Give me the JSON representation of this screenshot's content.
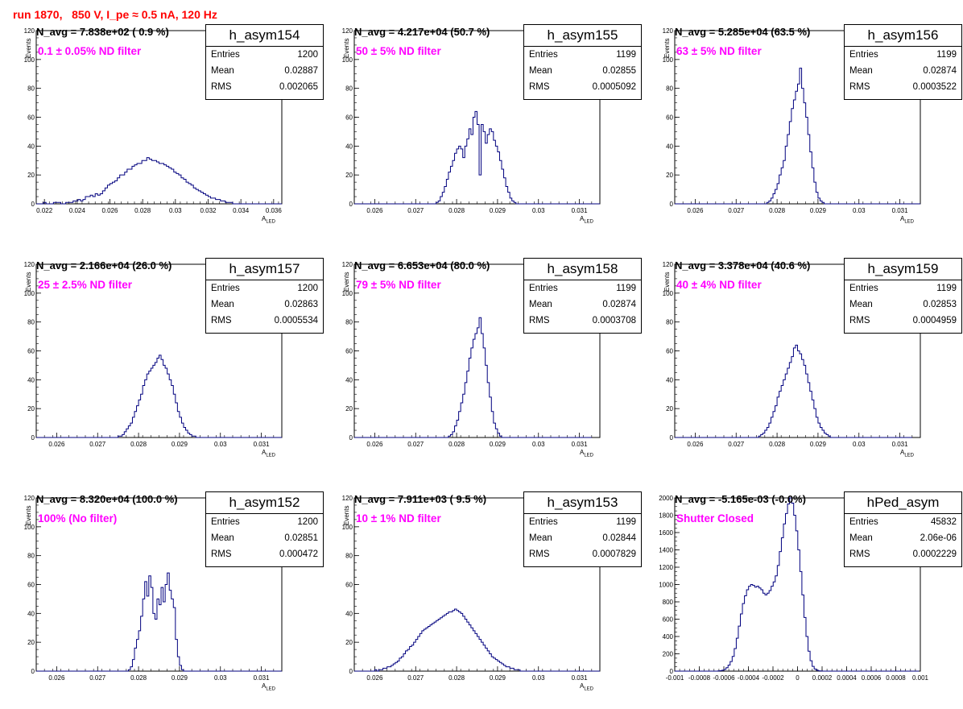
{
  "header": {
    "title": "run 1870,   850 V, I_pe ≈ 0.5 nA, 120 Hz"
  },
  "colors": {
    "line": "#00007f",
    "title": "#ff0000",
    "filter": "#ff00ff",
    "grid": "#cccccc"
  },
  "axis_labels": {
    "y": "Events",
    "x_main": "A",
    "x_sub": "LED"
  },
  "stats_labels": {
    "entries": "Entries",
    "mean": "Mean",
    "rms": "RMS"
  },
  "chart_data": [
    {
      "type": "bar",
      "histogram": true,
      "name": "h_asym154",
      "navg": "N_avg = 7.838e+02 ( 0.9 %)",
      "filter": "0.1 ± 0.05% ND filter",
      "entries": "1200",
      "mean": "0.02887",
      "rms": "0.002065",
      "xlim": [
        0.0215,
        0.0365
      ],
      "ylim": [
        0,
        120
      ],
      "xticks": [
        "0.022",
        "0.024",
        "0.026",
        "0.028",
        "0.03",
        "0.032",
        "0.034",
        "0.036"
      ],
      "yticks": [
        "0",
        "20",
        "40",
        "60",
        "80",
        "100",
        "120"
      ],
      "xlabel": "A LED",
      "ylabel": "Events",
      "bin_start": 0.0215,
      "bin_width": 0.00015,
      "values": [
        0,
        0,
        0,
        1,
        0,
        0,
        0,
        1,
        1,
        1,
        0,
        0,
        1,
        1,
        1,
        2,
        2,
        3,
        2,
        3,
        5,
        5,
        6,
        5,
        7,
        6,
        7,
        9,
        11,
        13,
        14,
        15,
        16,
        18,
        20,
        20,
        22,
        24,
        24,
        26,
        27,
        28,
        28,
        30,
        30,
        32,
        31,
        30,
        30,
        29,
        28,
        28,
        27,
        26,
        25,
        24,
        22,
        21,
        20,
        18,
        17,
        15,
        14,
        13,
        11,
        10,
        9,
        8,
        7,
        6,
        5,
        4,
        4,
        3,
        3,
        2,
        2,
        1,
        1,
        1,
        0,
        0,
        0,
        0,
        0,
        0,
        0,
        0,
        0,
        0,
        0,
        0,
        0,
        0,
        0,
        0,
        0,
        0,
        0,
        0
      ]
    },
    {
      "type": "bar",
      "histogram": true,
      "name": "h_asym155",
      "navg": "N_avg = 4.217e+04 (50.7 %)",
      "filter": "50 ± 5% ND filter",
      "entries": "1199",
      "mean": "0.02855",
      "rms": "0.0005092",
      "xlim": [
        0.0255,
        0.0315
      ],
      "ylim": [
        0,
        120
      ],
      "xticks": [
        "0.026",
        "0.027",
        "0.028",
        "0.029",
        "0.03",
        "0.031"
      ],
      "yticks": [
        "0",
        "20",
        "40",
        "60",
        "80",
        "100",
        "120"
      ],
      "xlabel": "A LED",
      "ylabel": "Events",
      "bin_start": 0.0255,
      "bin_width": 5e-05,
      "values": [
        0,
        0,
        0,
        0,
        0,
        0,
        0,
        0,
        0,
        0,
        0,
        0,
        0,
        0,
        0,
        0,
        0,
        0,
        0,
        0,
        0,
        0,
        0,
        0,
        0,
        0,
        0,
        0,
        0,
        0,
        0,
        0,
        0,
        0,
        0,
        0,
        0,
        0,
        0,
        0,
        1,
        2,
        5,
        8,
        12,
        17,
        22,
        26,
        30,
        35,
        38,
        40,
        38,
        32,
        40,
        45,
        52,
        48,
        60,
        64,
        55,
        20,
        55,
        50,
        42,
        48,
        52,
        50,
        44,
        40,
        36,
        30,
        24,
        18,
        12,
        8,
        4,
        2,
        1,
        0,
        0,
        0,
        0,
        0,
        0,
        0,
        0,
        0,
        0,
        0,
        0,
        0,
        0,
        0,
        0,
        0,
        0,
        0,
        0,
        0,
        0,
        0,
        0,
        0,
        0,
        0,
        0,
        0,
        0,
        0,
        0,
        0,
        0,
        0,
        0,
        0,
        0,
        0,
        0,
        0
      ]
    },
    {
      "type": "bar",
      "histogram": true,
      "name": "h_asym156",
      "navg": "N_avg = 5.285e+04 (63.5 %)",
      "filter": "63 ± 5% ND filter",
      "entries": "1199",
      "mean": "0.02874",
      "rms": "0.0003522",
      "xlim": [
        0.0255,
        0.0315
      ],
      "ylim": [
        0,
        120
      ],
      "xticks": [
        "0.026",
        "0.027",
        "0.028",
        "0.029",
        "0.03",
        "0.031"
      ],
      "yticks": [
        "0",
        "20",
        "40",
        "60",
        "80",
        "100",
        "120"
      ],
      "xlabel": "A LED",
      "ylabel": "Events",
      "bin_start": 0.0255,
      "bin_width": 5e-05,
      "values": [
        0,
        0,
        0,
        0,
        0,
        0,
        0,
        0,
        0,
        0,
        0,
        0,
        0,
        0,
        0,
        0,
        0,
        0,
        0,
        0,
        0,
        0,
        0,
        0,
        0,
        0,
        0,
        0,
        0,
        0,
        0,
        0,
        0,
        0,
        0,
        0,
        0,
        0,
        0,
        0,
        0,
        0,
        0,
        0,
        0,
        1,
        2,
        4,
        7,
        10,
        14,
        20,
        25,
        30,
        40,
        48,
        57,
        66,
        72,
        78,
        83,
        94,
        80,
        70,
        60,
        48,
        36,
        25,
        15,
        8,
        4,
        2,
        1,
        0,
        0,
        0,
        0,
        0,
        0,
        0,
        0,
        0,
        0,
        0,
        0,
        0,
        0,
        0,
        0,
        0,
        0,
        0,
        0,
        0,
        0,
        0,
        0,
        0,
        0,
        0,
        0,
        0,
        0,
        0,
        0,
        0,
        0,
        0,
        0,
        0,
        0,
        0,
        0,
        0,
        0,
        0,
        0,
        0,
        0,
        0
      ]
    },
    {
      "type": "bar",
      "histogram": true,
      "name": "h_asym157",
      "navg": "N_avg = 2.166e+04 (26.0 %)",
      "filter": "25 ± 2.5% ND filter",
      "entries": "1200",
      "mean": "0.02863",
      "rms": "0.0005534",
      "xlim": [
        0.0255,
        0.0315
      ],
      "ylim": [
        0,
        120
      ],
      "xticks": [
        "0.026",
        "0.027",
        "0.028",
        "0.029",
        "0.03",
        "0.031"
      ],
      "yticks": [
        "0",
        "20",
        "40",
        "60",
        "80",
        "100",
        "120"
      ],
      "xlabel": "A LED",
      "ylabel": "Events",
      "bin_start": 0.0255,
      "bin_width": 5e-05,
      "values": [
        0,
        0,
        0,
        0,
        0,
        0,
        0,
        0,
        0,
        0,
        0,
        0,
        0,
        0,
        0,
        0,
        0,
        0,
        0,
        0,
        0,
        0,
        0,
        0,
        0,
        0,
        0,
        0,
        0,
        0,
        0,
        0,
        0,
        0,
        0,
        0,
        0,
        0,
        0,
        0,
        1,
        1,
        2,
        4,
        6,
        8,
        10,
        14,
        18,
        22,
        26,
        30,
        36,
        40,
        44,
        46,
        48,
        50,
        52,
        55,
        57,
        54,
        50,
        48,
        44,
        40,
        36,
        30,
        24,
        18,
        14,
        10,
        7,
        5,
        3,
        2,
        1,
        1,
        0,
        0,
        0,
        0,
        0,
        0,
        0,
        0,
        0,
        0,
        0,
        0,
        0,
        0,
        0,
        0,
        0,
        0,
        0,
        0,
        0,
        0,
        0,
        0,
        0,
        0,
        0,
        0,
        0,
        0,
        0,
        0,
        0,
        0,
        0,
        0,
        0,
        0,
        0,
        0,
        0,
        0
      ]
    },
    {
      "type": "bar",
      "histogram": true,
      "name": "h_asym158",
      "navg": "N_avg = 6.653e+04 (80.0 %)",
      "filter": "79 ± 5% ND filter",
      "entries": "1199",
      "mean": "0.02874",
      "rms": "0.0003708",
      "xlim": [
        0.0255,
        0.0315
      ],
      "ylim": [
        0,
        120
      ],
      "xticks": [
        "0.026",
        "0.027",
        "0.028",
        "0.029",
        "0.03",
        "0.031"
      ],
      "yticks": [
        "0",
        "20",
        "40",
        "60",
        "80",
        "100",
        "120"
      ],
      "xlabel": "A LED",
      "ylabel": "Events",
      "bin_start": 0.0255,
      "bin_width": 5e-05,
      "values": [
        0,
        0,
        0,
        0,
        0,
        0,
        0,
        0,
        0,
        0,
        0,
        0,
        0,
        0,
        0,
        0,
        0,
        0,
        0,
        0,
        0,
        0,
        0,
        0,
        0,
        0,
        0,
        0,
        0,
        0,
        0,
        0,
        0,
        0,
        0,
        0,
        0,
        0,
        0,
        0,
        0,
        0,
        0,
        0,
        0,
        0,
        1,
        2,
        4,
        8,
        12,
        18,
        24,
        30,
        38,
        46,
        55,
        62,
        68,
        72,
        76,
        83,
        72,
        62,
        50,
        38,
        28,
        18,
        10,
        6,
        3,
        1,
        0,
        0,
        0,
        0,
        0,
        0,
        0,
        0,
        0,
        0,
        0,
        0,
        0,
        0,
        0,
        0,
        0,
        0,
        0,
        0,
        0,
        0,
        0,
        0,
        0,
        0,
        0,
        0,
        0,
        0,
        0,
        0,
        0,
        0,
        0,
        0,
        0,
        0,
        0,
        0,
        0,
        0,
        0,
        0
      ]
    },
    {
      "type": "bar",
      "histogram": true,
      "name": "h_asym159",
      "navg": "N_avg = 3.378e+04 (40.6 %)",
      "filter": "40 ± 4% ND filter",
      "entries": "1199",
      "mean": "0.02853",
      "rms": "0.0004959",
      "xlim": [
        0.0255,
        0.0315
      ],
      "ylim": [
        0,
        120
      ],
      "xticks": [
        "0.026",
        "0.027",
        "0.028",
        "0.029",
        "0.03",
        "0.031"
      ],
      "yticks": [
        "0",
        "20",
        "40",
        "60",
        "80",
        "100",
        "120"
      ],
      "xlabel": "A LED",
      "ylabel": "Events",
      "bin_start": 0.0255,
      "bin_width": 5e-05,
      "values": [
        0,
        0,
        0,
        0,
        0,
        0,
        0,
        0,
        0,
        0,
        0,
        0,
        0,
        0,
        0,
        0,
        0,
        0,
        0,
        0,
        0,
        0,
        0,
        0,
        0,
        0,
        0,
        0,
        0,
        0,
        0,
        0,
        0,
        0,
        0,
        0,
        0,
        0,
        0,
        0,
        0,
        1,
        2,
        3,
        5,
        7,
        10,
        14,
        18,
        22,
        28,
        32,
        36,
        40,
        44,
        48,
        52,
        56,
        62,
        64,
        60,
        58,
        54,
        50,
        44,
        38,
        32,
        26,
        20,
        14,
        10,
        7,
        5,
        3,
        2,
        1,
        0,
        0,
        0,
        0,
        0,
        0,
        0,
        0,
        0,
        0,
        0,
        0,
        0,
        0,
        0,
        0,
        0,
        0,
        0,
        0,
        0,
        0,
        0,
        0,
        0,
        0,
        0,
        0,
        0,
        0,
        0,
        0,
        0,
        0,
        0,
        0,
        0,
        0,
        0,
        0
      ]
    },
    {
      "type": "bar",
      "histogram": true,
      "name": "h_asym152",
      "navg": "N_avg = 8.320e+04 (100.0 %)",
      "filter": "100% (No filter)",
      "entries": "1200",
      "mean": "0.02851",
      "rms": "0.000472",
      "xlim": [
        0.0255,
        0.0315
      ],
      "ylim": [
        0,
        120
      ],
      "xticks": [
        "0.026",
        "0.027",
        "0.028",
        "0.029",
        "0.03",
        "0.031"
      ],
      "yticks": [
        "0",
        "20",
        "40",
        "60",
        "80",
        "100",
        "120"
      ],
      "xlabel": "A LED",
      "ylabel": "Events",
      "bin_start": 0.0255,
      "bin_width": 5e-05,
      "values": [
        0,
        0,
        0,
        0,
        0,
        0,
        0,
        0,
        0,
        0,
        0,
        0,
        0,
        0,
        0,
        0,
        0,
        0,
        0,
        0,
        0,
        0,
        0,
        0,
        0,
        0,
        0,
        0,
        0,
        0,
        0,
        0,
        0,
        0,
        0,
        0,
        0,
        0,
        0,
        0,
        0,
        0,
        0,
        0,
        0,
        1,
        3,
        8,
        16,
        22,
        28,
        38,
        50,
        62,
        52,
        66,
        58,
        40,
        36,
        50,
        46,
        58,
        48,
        60,
        68,
        56,
        50,
        44,
        22,
        10,
        4,
        1,
        0,
        0,
        0,
        0,
        0,
        0,
        0,
        0,
        0,
        0,
        0,
        0,
        0,
        0,
        0,
        0,
        0,
        0,
        0,
        0,
        0,
        0,
        0,
        0,
        0,
        0,
        0,
        0,
        0,
        0,
        0,
        0,
        0,
        0,
        0,
        0,
        0,
        0,
        0,
        0,
        0,
        0,
        0,
        0,
        0,
        0,
        0,
        0
      ]
    },
    {
      "type": "bar",
      "histogram": true,
      "name": "h_asym153",
      "navg": "N_avg = 7.911e+03 ( 9.5 %)",
      "filter": "10 ± 1% ND filter",
      "entries": "1199",
      "mean": "0.02844",
      "rms": "0.0007829",
      "xlim": [
        0.0255,
        0.0315
      ],
      "ylim": [
        0,
        120
      ],
      "xticks": [
        "0.026",
        "0.027",
        "0.028",
        "0.029",
        "0.03",
        "0.031"
      ],
      "yticks": [
        "0",
        "20",
        "40",
        "60",
        "80",
        "100",
        "120"
      ],
      "xlabel": "A LED",
      "ylabel": "Events",
      "bin_start": 0.0255,
      "bin_width": 5e-05,
      "values": [
        0,
        0,
        0,
        0,
        0,
        0,
        0,
        0,
        0,
        0,
        1,
        0,
        1,
        1,
        2,
        2,
        3,
        3,
        4,
        5,
        6,
        7,
        9,
        10,
        12,
        14,
        15,
        17,
        18,
        20,
        22,
        24,
        26,
        28,
        29,
        30,
        31,
        32,
        33,
        34,
        35,
        36,
        37,
        38,
        39,
        40,
        41,
        41,
        42,
        43,
        42,
        41,
        40,
        38,
        36,
        34,
        32,
        30,
        28,
        26,
        24,
        22,
        20,
        18,
        16,
        14,
        12,
        10,
        9,
        8,
        7,
        6,
        5,
        4,
        3,
        3,
        2,
        2,
        1,
        1,
        1,
        0,
        0,
        0,
        0,
        0,
        0,
        0,
        0,
        0,
        0,
        0,
        0,
        0,
        0,
        0,
        0,
        0,
        0,
        0,
        0,
        0,
        0,
        0,
        0,
        0,
        0,
        0,
        0,
        0,
        0,
        0,
        0,
        0,
        0,
        0,
        0,
        0,
        0,
        0
      ]
    },
    {
      "type": "bar",
      "histogram": true,
      "name": "hPed_asym",
      "navg": "N_avg = -5.165e-03 (-0.0%)",
      "filter": "Shutter Closed",
      "entries": "45832",
      "mean": "2.06e-06",
      "rms": "0.0002229",
      "xlim": [
        -0.001,
        0.001
      ],
      "ylim": [
        0,
        2000
      ],
      "xticks": [
        "-0.001",
        "-0.0008",
        "-0.0006",
        "-0.0004",
        "-0.0002",
        "0",
        "0.0002",
        "0.0004",
        "0.0006",
        "0.0008",
        "0.001"
      ],
      "yticks": [
        "0",
        "200",
        "400",
        "600",
        "800",
        "1000",
        "1200",
        "1400",
        "1600",
        "1800",
        "2000"
      ],
      "xlabel": "",
      "ylabel": "",
      "bin_start": -0.001,
      "bin_width": 1.67e-05,
      "values": [
        0,
        0,
        0,
        0,
        0,
        0,
        0,
        0,
        0,
        0,
        0,
        0,
        0,
        0,
        0,
        0,
        0,
        0,
        0,
        0,
        0,
        2,
        5,
        10,
        20,
        40,
        70,
        110,
        170,
        260,
        380,
        520,
        660,
        780,
        870,
        940,
        980,
        1000,
        990,
        970,
        980,
        960,
        940,
        900,
        880,
        900,
        930,
        980,
        1030,
        1100,
        1220,
        1380,
        1540,
        1700,
        1820,
        1930,
        2000,
        1940,
        1800,
        1620,
        1400,
        1150,
        880,
        620,
        400,
        230,
        120,
        55,
        25,
        10,
        4,
        1,
        0,
        0,
        0,
        0,
        0,
        0,
        0,
        0,
        0,
        0,
        0,
        0,
        0,
        0,
        0,
        0,
        0,
        0,
        0,
        0,
        0,
        0,
        0,
        0,
        0,
        0,
        0,
        0,
        0,
        0,
        0,
        0,
        0,
        0,
        0,
        0,
        0,
        0,
        0,
        0,
        0,
        0,
        0,
        0,
        0,
        0,
        0
      ]
    }
  ]
}
